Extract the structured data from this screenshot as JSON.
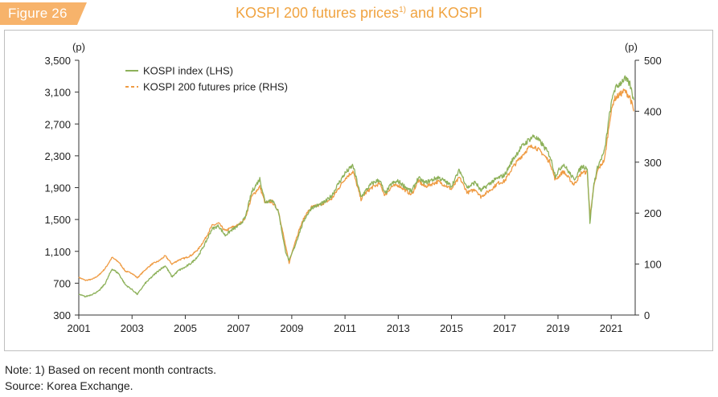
{
  "figure": {
    "label": "Figure 26",
    "title": "KOSPI 200 futures prices",
    "title_sup": "1)",
    "title_tail": " and KOSPI"
  },
  "colors": {
    "kospi": "#8db15a",
    "futures": "#ef9b43",
    "tag": "#f7b36b",
    "title": "#f0a340"
  },
  "notes": {
    "note": "Note: 1) Based on recent month contracts.",
    "source": "Source: Korea Exchange."
  },
  "chart_data": {
    "type": "line",
    "x_unit": "year",
    "xlim": [
      2001,
      2021.9
    ],
    "xticks": [
      "2001",
      "2003",
      "2005",
      "2007",
      "2009",
      "2011",
      "2013",
      "2015",
      "2017",
      "2019",
      "2021"
    ],
    "left_axis": {
      "unit_label": "(p)",
      "ylim": [
        300,
        3500
      ],
      "ticks": [
        "3,500",
        "3,100",
        "2,700",
        "2,300",
        "1,900",
        "1,500",
        "1,100",
        "700",
        "300"
      ]
    },
    "right_axis": {
      "unit_label": "(p)",
      "ylim": [
        0,
        500
      ],
      "ticks": [
        "500",
        "400",
        "300",
        "200",
        "100",
        "0"
      ]
    },
    "grid": false,
    "legend_position": "top-left",
    "series": [
      {
        "name": "KOSPI index (LHS)",
        "axis": "left",
        "style": "solid",
        "points": [
          [
            2001.0,
            560
          ],
          [
            2001.25,
            530
          ],
          [
            2001.5,
            560
          ],
          [
            2001.75,
            600
          ],
          [
            2002.0,
            700
          ],
          [
            2002.25,
            880
          ],
          [
            2002.5,
            820
          ],
          [
            2002.75,
            680
          ],
          [
            2003.0,
            620
          ],
          [
            2003.2,
            560
          ],
          [
            2003.5,
            700
          ],
          [
            2003.75,
            780
          ],
          [
            2004.0,
            860
          ],
          [
            2004.25,
            920
          ],
          [
            2004.5,
            780
          ],
          [
            2004.75,
            860
          ],
          [
            2005.0,
            900
          ],
          [
            2005.25,
            960
          ],
          [
            2005.5,
            1050
          ],
          [
            2005.75,
            1200
          ],
          [
            2006.0,
            1380
          ],
          [
            2006.25,
            1420
          ],
          [
            2006.5,
            1300
          ],
          [
            2006.75,
            1370
          ],
          [
            2007.0,
            1420
          ],
          [
            2007.25,
            1520
          ],
          [
            2007.5,
            1850
          ],
          [
            2007.8,
            2010
          ],
          [
            2008.0,
            1720
          ],
          [
            2008.25,
            1750
          ],
          [
            2008.5,
            1600
          ],
          [
            2008.75,
            1120
          ],
          [
            2008.9,
            980
          ],
          [
            2009.1,
            1150
          ],
          [
            2009.3,
            1350
          ],
          [
            2009.5,
            1520
          ],
          [
            2009.75,
            1650
          ],
          [
            2010.0,
            1680
          ],
          [
            2010.25,
            1720
          ],
          [
            2010.5,
            1800
          ],
          [
            2010.75,
            1950
          ],
          [
            2011.0,
            2080
          ],
          [
            2011.3,
            2180
          ],
          [
            2011.6,
            1780
          ],
          [
            2011.75,
            1850
          ],
          [
            2012.0,
            1950
          ],
          [
            2012.3,
            2000
          ],
          [
            2012.5,
            1820
          ],
          [
            2012.75,
            1950
          ],
          [
            2013.0,
            1980
          ],
          [
            2013.5,
            1850
          ],
          [
            2013.75,
            2020
          ],
          [
            2014.0,
            1960
          ],
          [
            2014.5,
            2030
          ],
          [
            2014.75,
            1980
          ],
          [
            2015.0,
            1920
          ],
          [
            2015.3,
            2120
          ],
          [
            2015.6,
            1900
          ],
          [
            2015.9,
            1970
          ],
          [
            2016.1,
            1860
          ],
          [
            2016.5,
            1970
          ],
          [
            2016.75,
            2020
          ],
          [
            2017.0,
            2060
          ],
          [
            2017.3,
            2250
          ],
          [
            2017.6,
            2400
          ],
          [
            2017.9,
            2500
          ],
          [
            2018.1,
            2550
          ],
          [
            2018.4,
            2450
          ],
          [
            2018.7,
            2300
          ],
          [
            2018.9,
            2050
          ],
          [
            2019.2,
            2200
          ],
          [
            2019.6,
            2000
          ],
          [
            2019.9,
            2170
          ],
          [
            2020.1,
            2150
          ],
          [
            2020.2,
            1460
          ],
          [
            2020.35,
            1950
          ],
          [
            2020.5,
            2170
          ],
          [
            2020.75,
            2360
          ],
          [
            2020.95,
            2850
          ],
          [
            2021.1,
            3120
          ],
          [
            2021.3,
            3200
          ],
          [
            2021.5,
            3270
          ],
          [
            2021.7,
            3200
          ],
          [
            2021.85,
            3000
          ]
        ]
      },
      {
        "name": "KOSPI 200 futures price (RHS)",
        "axis": "right",
        "style": "dashed",
        "points": [
          [
            2001.0,
            74
          ],
          [
            2001.25,
            68
          ],
          [
            2001.5,
            70
          ],
          [
            2001.75,
            78
          ],
          [
            2002.0,
            92
          ],
          [
            2002.25,
            113
          ],
          [
            2002.5,
            104
          ],
          [
            2002.75,
            86
          ],
          [
            2003.0,
            82
          ],
          [
            2003.2,
            73
          ],
          [
            2003.5,
            89
          ],
          [
            2003.75,
            100
          ],
          [
            2004.0,
            106
          ],
          [
            2004.25,
            116
          ],
          [
            2004.5,
            100
          ],
          [
            2004.75,
            108
          ],
          [
            2005.0,
            112
          ],
          [
            2005.25,
            118
          ],
          [
            2005.5,
            130
          ],
          [
            2005.75,
            150
          ],
          [
            2006.0,
            175
          ],
          [
            2006.25,
            180
          ],
          [
            2006.5,
            165
          ],
          [
            2006.75,
            172
          ],
          [
            2007.0,
            177
          ],
          [
            2007.25,
            190
          ],
          [
            2007.5,
            233
          ],
          [
            2007.8,
            252
          ],
          [
            2008.0,
            220
          ],
          [
            2008.25,
            223
          ],
          [
            2008.5,
            205
          ],
          [
            2008.75,
            140
          ],
          [
            2008.9,
            102
          ],
          [
            2009.1,
            140
          ],
          [
            2009.3,
            170
          ],
          [
            2009.5,
            195
          ],
          [
            2009.75,
            212
          ],
          [
            2010.0,
            215
          ],
          [
            2010.25,
            221
          ],
          [
            2010.5,
            228
          ],
          [
            2010.75,
            248
          ],
          [
            2011.0,
            268
          ],
          [
            2011.3,
            282
          ],
          [
            2011.6,
            227
          ],
          [
            2011.75,
            238
          ],
          [
            2012.0,
            250
          ],
          [
            2012.3,
            258
          ],
          [
            2012.5,
            235
          ],
          [
            2012.75,
            252
          ],
          [
            2013.0,
            255
          ],
          [
            2013.5,
            236
          ],
          [
            2013.75,
            263
          ],
          [
            2014.0,
            252
          ],
          [
            2014.5,
            262
          ],
          [
            2014.75,
            255
          ],
          [
            2015.0,
            247
          ],
          [
            2015.3,
            270
          ],
          [
            2015.6,
            240
          ],
          [
            2015.9,
            247
          ],
          [
            2016.1,
            232
          ],
          [
            2016.5,
            247
          ],
          [
            2016.75,
            259
          ],
          [
            2017.0,
            263
          ],
          [
            2017.3,
            290
          ],
          [
            2017.6,
            310
          ],
          [
            2017.9,
            328
          ],
          [
            2018.1,
            332
          ],
          [
            2018.4,
            318
          ],
          [
            2018.7,
            300
          ],
          [
            2018.9,
            265
          ],
          [
            2019.2,
            282
          ],
          [
            2019.6,
            256
          ],
          [
            2019.9,
            280
          ],
          [
            2020.1,
            280
          ],
          [
            2020.2,
            196
          ],
          [
            2020.35,
            252
          ],
          [
            2020.5,
            285
          ],
          [
            2020.75,
            305
          ],
          [
            2020.95,
            385
          ],
          [
            2021.1,
            423
          ],
          [
            2021.3,
            432
          ],
          [
            2021.5,
            440
          ],
          [
            2021.7,
            428
          ],
          [
            2021.85,
            400
          ]
        ]
      }
    ]
  }
}
